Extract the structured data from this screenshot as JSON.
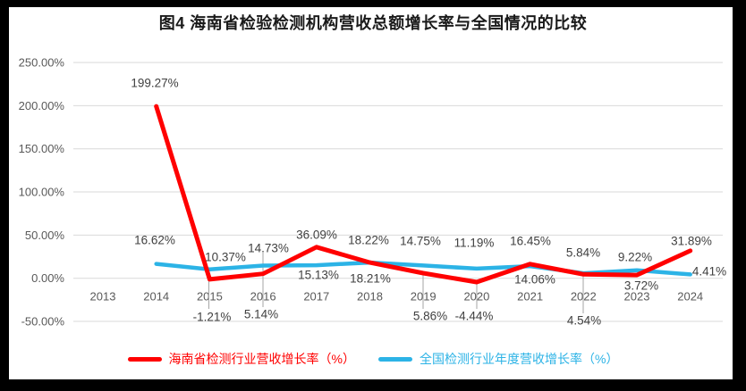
{
  "title": "图4 海南省检验检测机构营收总额增长率与全国情况的比较",
  "chart_data": {
    "type": "line",
    "categories": [
      "2013",
      "2014",
      "2015",
      "2016",
      "2017",
      "2018",
      "2019",
      "2020",
      "2021",
      "2022",
      "2023",
      "2024"
    ],
    "series": [
      {
        "name": "海南省检测行业营收增长率（%）",
        "color": "#FF0000",
        "values": [
          null,
          199.27,
          -1.21,
          5.14,
          36.09,
          18.22,
          5.86,
          -4.44,
          16.45,
          4.54,
          3.72,
          31.89
        ],
        "labels": [
          null,
          "199.27%",
          "-1.21%",
          "5.14%",
          "36.09%",
          "18.22%",
          "5.86%",
          "-4.44%",
          "16.45%",
          "4.54%",
          "3.72%",
          "31.89%"
        ]
      },
      {
        "name": "全国检测行业年度营收增长率（%）",
        "color": "#2CB3E6",
        "values": [
          null,
          16.62,
          10.37,
          14.73,
          15.13,
          18.21,
          14.75,
          11.19,
          14.06,
          5.84,
          9.22,
          4.41
        ],
        "labels": [
          null,
          "16.62%",
          "10.37%",
          "14.73%",
          "15.13%",
          "18.21%",
          "14.75%",
          "11.19%",
          "14.06%",
          "5.84%",
          "9.22%",
          "4.41%"
        ]
      }
    ],
    "y_axis": {
      "min": -50,
      "max": 250,
      "step": 50,
      "tick_labels": [
        "250.00%",
        "200.00%",
        "150.00%",
        "100.00%",
        "50.00%",
        "0.00%",
        "-50.00%"
      ]
    },
    "xlabel": "",
    "ylabel": "",
    "grid": true,
    "legend_position": "bottom"
  },
  "colors": {
    "frame": "#000000",
    "card": "#FFFFFF",
    "grid": "#D9D9D9",
    "axis_text": "#595959",
    "data_label": "#404040",
    "leader": "#A6A6A6"
  }
}
